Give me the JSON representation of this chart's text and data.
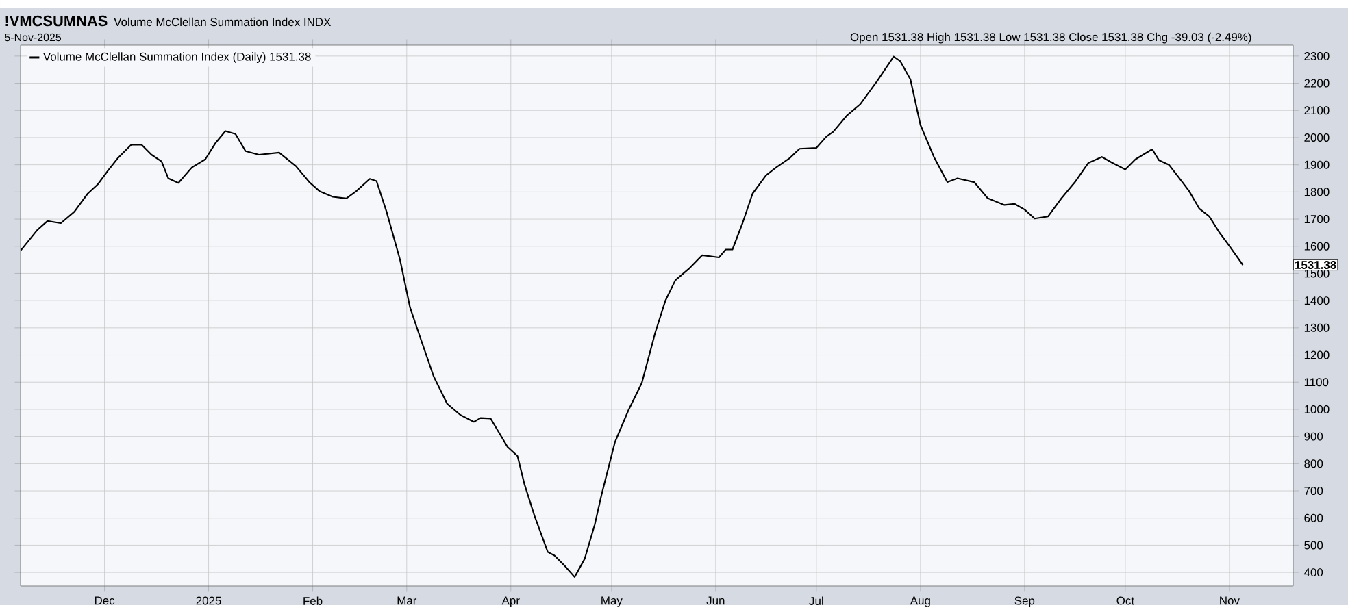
{
  "chart_data": {
    "type": "line",
    "title": "!VMCSUMNAS",
    "subtitle": "Volume McClellan Summation Index INDX",
    "annotations": [
      "5-Nov-2025",
      "Open 1531.38  High 1531.38  Low 1531.38  Close 1531.38  Chg -39.03 (-2.49%)",
      "1531.38"
    ],
    "x": [
      "2024-11-06",
      "2024-11-11",
      "2024-11-14",
      "2024-11-18",
      "2024-11-22",
      "2024-11-26",
      "2024-11-29",
      "2024-12-02",
      "2024-12-05",
      "2024-12-09",
      "2024-12-12",
      "2024-12-15",
      "2024-12-18",
      "2024-12-20",
      "2024-12-23",
      "2024-12-27",
      "2024-12-31",
      "2025-01-03",
      "2025-01-06",
      "2025-01-09",
      "2025-01-12",
      "2025-01-16",
      "2025-01-22",
      "2025-01-27",
      "2025-01-31",
      "2025-02-03",
      "2025-02-07",
      "2025-02-11",
      "2025-02-14",
      "2025-02-18",
      "2025-02-20",
      "2025-02-23",
      "2025-02-27",
      "2025-03-02",
      "2025-03-05",
      "2025-03-09",
      "2025-03-13",
      "2025-03-17",
      "2025-03-21",
      "2025-03-23",
      "2025-03-26",
      "2025-03-31",
      "2025-04-03",
      "2025-04-05",
      "2025-04-08",
      "2025-04-12",
      "2025-04-14",
      "2025-04-17",
      "2025-04-20",
      "2025-04-23",
      "2025-04-26",
      "2025-04-28",
      "2025-05-02",
      "2025-05-06",
      "2025-05-10",
      "2025-05-14",
      "2025-05-17",
      "2025-05-20",
      "2025-05-24",
      "2025-05-28",
      "2025-06-02",
      "2025-06-04",
      "2025-06-06",
      "2025-06-09",
      "2025-06-12",
      "2025-06-16",
      "2025-06-19",
      "2025-06-23",
      "2025-06-26",
      "2025-07-01",
      "2025-07-04",
      "2025-07-06",
      "2025-07-10",
      "2025-07-14",
      "2025-07-19",
      "2025-07-24",
      "2025-07-26",
      "2025-07-29",
      "2025-08-01",
      "2025-08-05",
      "2025-08-09",
      "2025-08-12",
      "2025-08-17",
      "2025-08-21",
      "2025-08-26",
      "2025-08-29",
      "2025-09-01",
      "2025-09-04",
      "2025-09-08",
      "2025-09-12",
      "2025-09-16",
      "2025-09-20",
      "2025-09-24",
      "2025-09-27",
      "2025-10-01",
      "2025-10-04",
      "2025-10-09",
      "2025-10-11",
      "2025-10-14",
      "2025-10-18",
      "2025-10-20",
      "2025-10-23",
      "2025-10-26",
      "2025-10-29",
      "2025-11-01",
      "2025-11-05"
    ],
    "series": [
      {
        "name": "Volume McClellan Summation Index (Daily) 1531.38",
        "color": "#000000",
        "values": [
          1584,
          1660,
          1693,
          1685,
          1727,
          1794,
          1828,
          1878,
          1925,
          1974,
          1974,
          1937,
          1912,
          1850,
          1833,
          1890,
          1920,
          1979,
          2024,
          2013,
          1950,
          1937,
          1945,
          1895,
          1836,
          1803,
          1782,
          1776,
          1803,
          1848,
          1840,
          1727,
          1551,
          1374,
          1265,
          1122,
          1021,
          979,
          954,
          968,
          966,
          862,
          828,
          727,
          610,
          475,
          462,
          425,
          383,
          450,
          576,
          685,
          879,
          996,
          1097,
          1282,
          1399,
          1475,
          1517,
          1567,
          1559,
          1588,
          1588,
          1685,
          1794,
          1861,
          1890,
          1924,
          1959,
          1962,
          2004,
          2021,
          2080,
          2122,
          2206,
          2298,
          2281,
          2214,
          2046,
          1929,
          1836,
          1850,
          1836,
          1777,
          1752,
          1756,
          1735,
          1702,
          1710,
          1777,
          1836,
          1907,
          1929,
          1908,
          1883,
          1920,
          1957,
          1917,
          1900,
          1836,
          1803,
          1739,
          1710,
          1651,
          1601,
          1531.38
        ]
      }
    ],
    "xlim": [
      "2024-11-06",
      "2025-11-20"
    ],
    "xticks": [
      {
        "value": "2024-12-01",
        "label": "Dec"
      },
      {
        "value": "2025-01-01",
        "label": "2025"
      },
      {
        "value": "2025-02-01",
        "label": "Feb"
      },
      {
        "value": "2025-03-01",
        "label": "Mar"
      },
      {
        "value": "2025-04-01",
        "label": "Apr"
      },
      {
        "value": "2025-05-01",
        "label": "May"
      },
      {
        "value": "2025-06-01",
        "label": "Jun"
      },
      {
        "value": "2025-07-01",
        "label": "Jul"
      },
      {
        "value": "2025-08-01",
        "label": "Aug"
      },
      {
        "value": "2025-09-01",
        "label": "Sep"
      },
      {
        "value": "2025-10-01",
        "label": "Oct"
      },
      {
        "value": "2025-11-01",
        "label": "Nov"
      }
    ],
    "ylim": [
      350,
      2340
    ],
    "yticks": [
      400,
      500,
      600,
      700,
      800,
      900,
      1000,
      1100,
      1200,
      1300,
      1400,
      1500,
      1600,
      1700,
      1800,
      1900,
      2000,
      2100,
      2200,
      2300
    ],
    "grid": true,
    "legend": "top left",
    "line_style": "solid",
    "marker": "none"
  }
}
